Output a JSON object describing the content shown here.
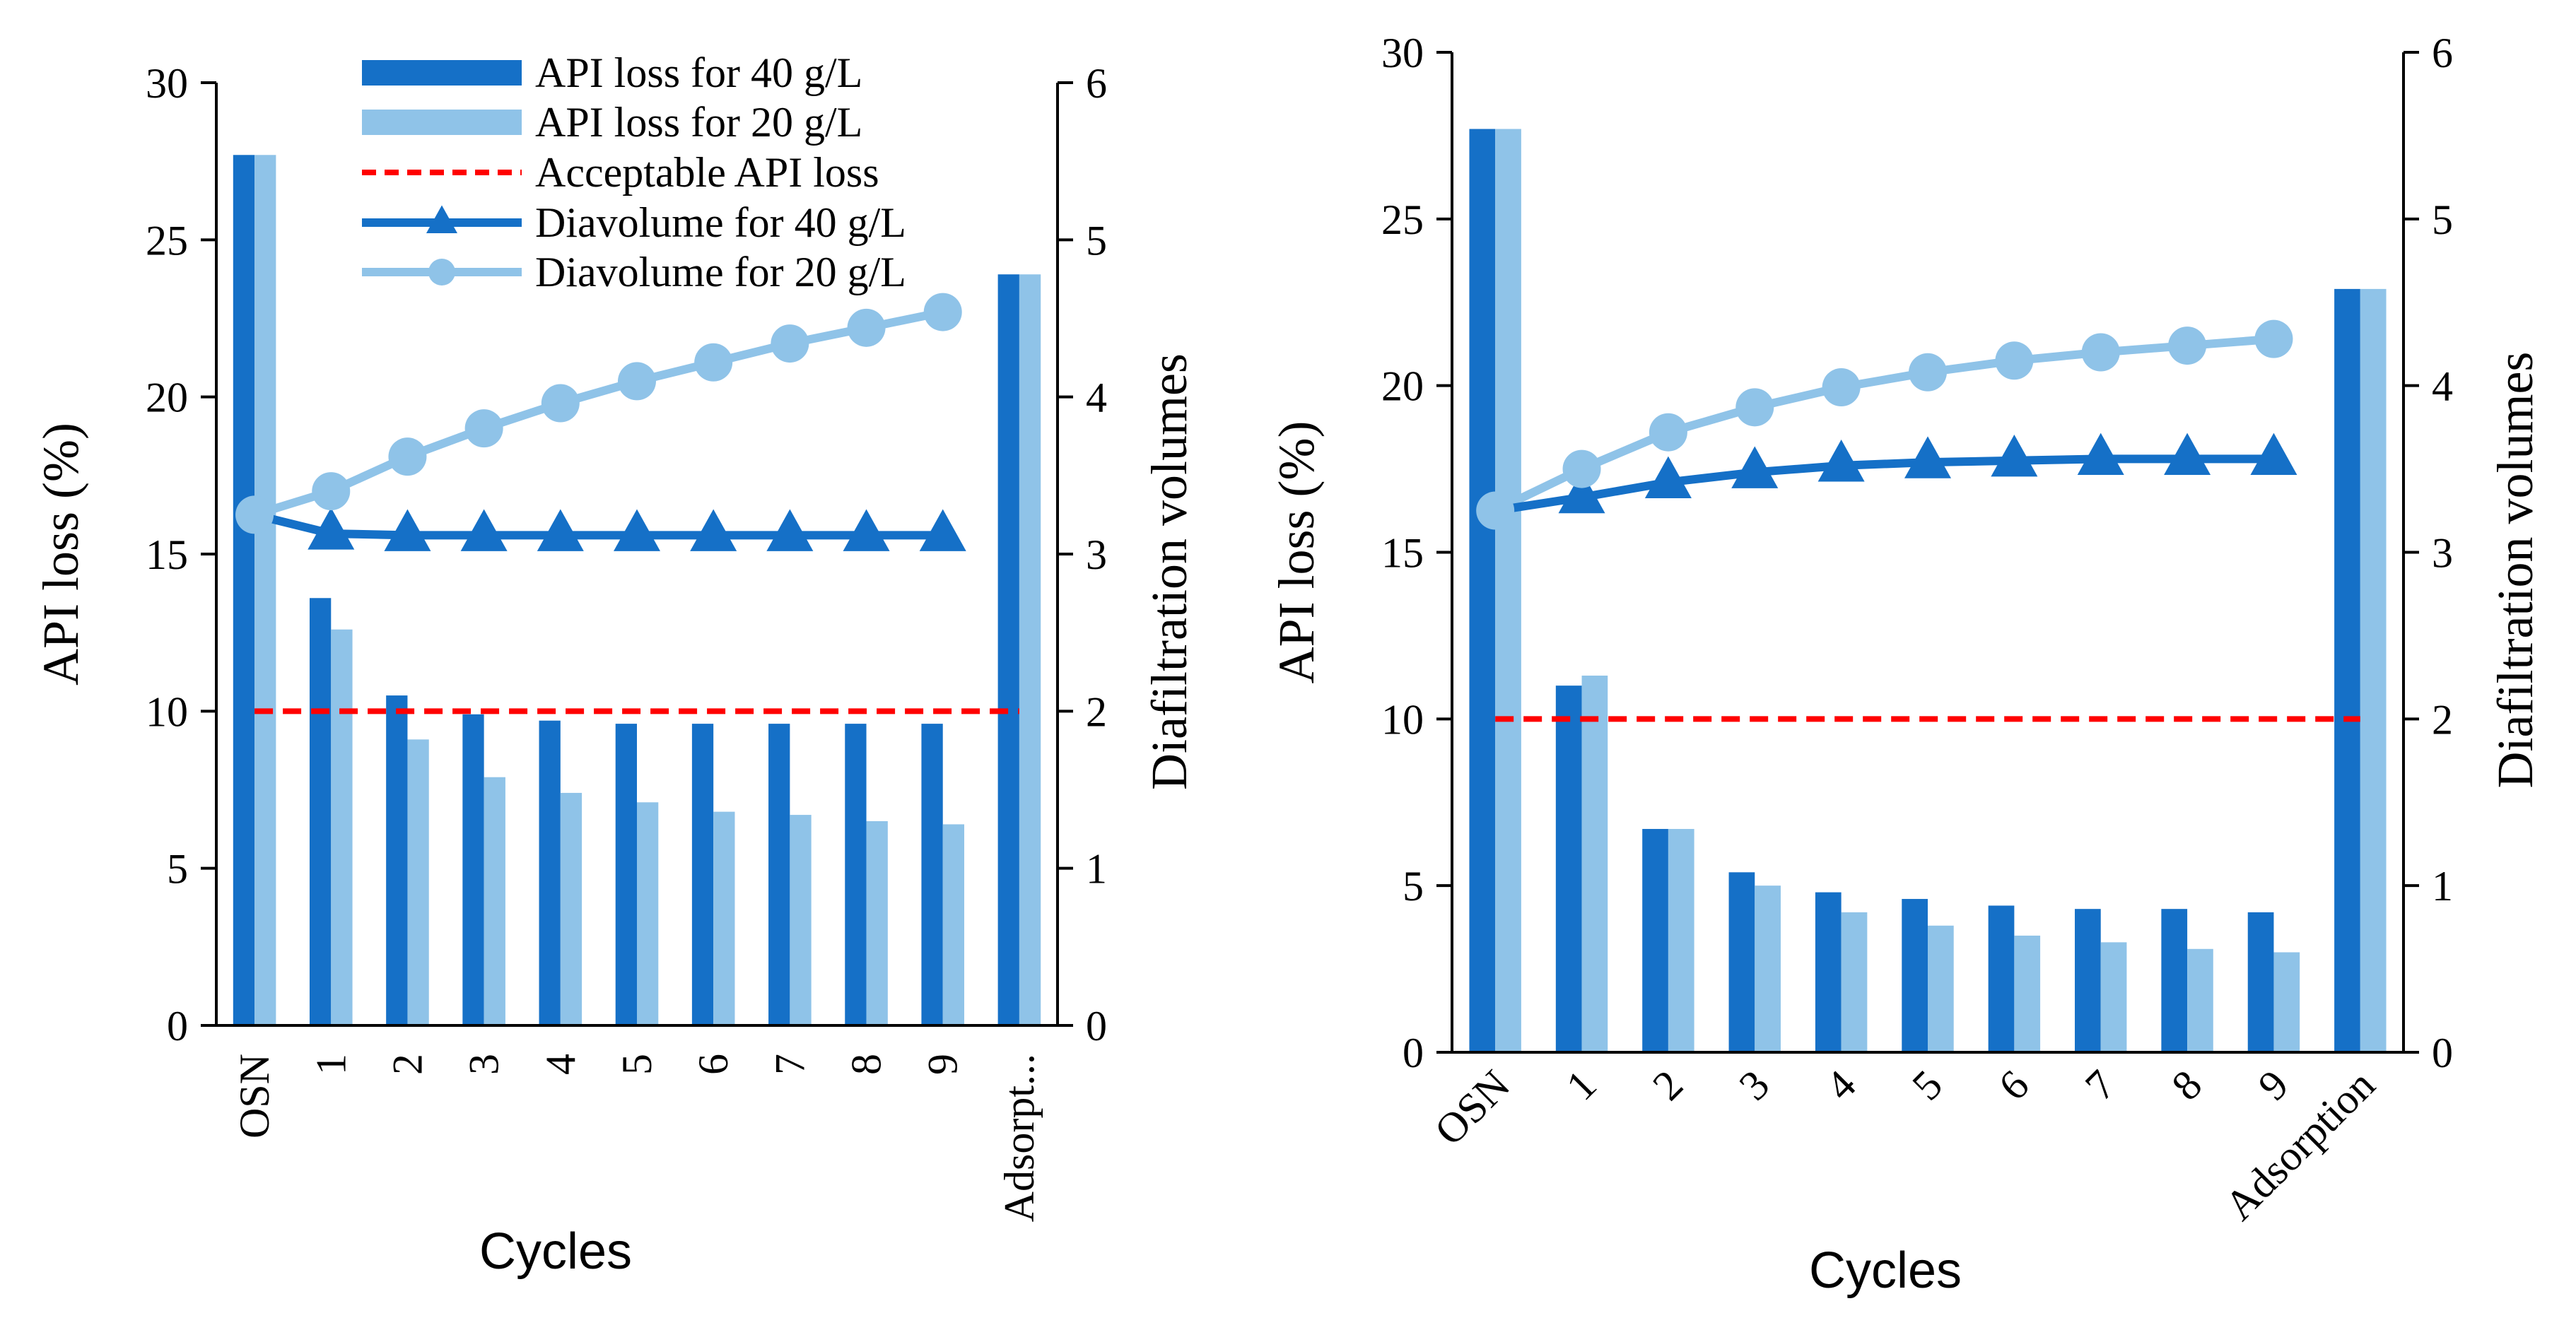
{
  "colors": {
    "dark_blue": "#1570C7",
    "light_blue": "#8FC3E8",
    "red": "#FF0000",
    "axis": "#000000"
  },
  "legend": {
    "items": [
      {
        "label": "API loss for 40 g/L",
        "kind": "bar-dark"
      },
      {
        "label": "API loss for 20 g/L",
        "kind": "bar-light"
      },
      {
        "label": "Acceptable API loss",
        "kind": "dashed-red"
      },
      {
        "label": "Diavolume for 40 g/L",
        "kind": "line-triangle"
      },
      {
        "label": "Diavolume for 20 g/L",
        "kind": "line-circle"
      }
    ]
  },
  "chart_data": [
    {
      "type": "bar",
      "panel": "left",
      "categories": [
        "OSN",
        "1",
        "2",
        "3",
        "4",
        "5",
        "6",
        "7",
        "8",
        "9",
        "Adsorpt..."
      ],
      "series": [
        {
          "name": "API loss for 40 g/L",
          "axis": "left",
          "values": [
            27.7,
            13.6,
            10.5,
            9.9,
            9.7,
            9.6,
            9.6,
            9.6,
            9.6,
            9.6,
            23.9
          ]
        },
        {
          "name": "API loss for 20 g/L",
          "axis": "left",
          "values": [
            27.7,
            12.6,
            9.1,
            7.9,
            7.4,
            7.1,
            6.8,
            6.7,
            6.5,
            6.4,
            23.9
          ]
        },
        {
          "name": "Diavolume for 40 g/L",
          "type": "line",
          "axis": "right",
          "x": [
            "OSN",
            "1",
            "2",
            "3",
            "4",
            "5",
            "6",
            "7",
            "8",
            "9"
          ],
          "values": [
            3.25,
            3.13,
            3.12,
            3.12,
            3.12,
            3.12,
            3.12,
            3.12,
            3.12,
            3.12
          ]
        },
        {
          "name": "Diavolume for 20 g/L",
          "type": "line",
          "axis": "right",
          "x": [
            "OSN",
            "1",
            "2",
            "3",
            "4",
            "5",
            "6",
            "7",
            "8",
            "9"
          ],
          "values": [
            3.25,
            3.4,
            3.62,
            3.8,
            3.96,
            4.1,
            4.22,
            4.34,
            4.44,
            4.54
          ]
        }
      ],
      "reference_line": {
        "name": "Acceptable API loss",
        "value": 10
      },
      "xlabel": "Cycles",
      "ylabel": "API loss (%)",
      "y2label": "Diafiltration volumes",
      "ylim": [
        0,
        30
      ],
      "y2lim": [
        0,
        6
      ],
      "yticks": [
        0,
        5,
        10,
        15,
        20,
        25,
        30
      ],
      "y2ticks": [
        0,
        1,
        2,
        3,
        4,
        5,
        6
      ]
    },
    {
      "type": "bar",
      "panel": "right",
      "categories": [
        "OSN",
        "1",
        "2",
        "3",
        "4",
        "5",
        "6",
        "7",
        "8",
        "9",
        "Adsorption"
      ],
      "series": [
        {
          "name": "API loss for 40 g/L",
          "axis": "left",
          "values": [
            27.7,
            11.0,
            6.7,
            5.4,
            4.8,
            4.6,
            4.4,
            4.3,
            4.3,
            4.2,
            22.9
          ]
        },
        {
          "name": "API loss for 20 g/L",
          "axis": "left",
          "values": [
            27.7,
            11.3,
            6.7,
            5.0,
            4.2,
            3.8,
            3.5,
            3.3,
            3.1,
            3.0,
            22.9
          ]
        },
        {
          "name": "Diavolume for 40 g/L",
          "type": "line",
          "axis": "right",
          "x": [
            "OSN",
            "1",
            "2",
            "3",
            "4",
            "5",
            "6",
            "7",
            "8",
            "9"
          ],
          "values": [
            3.25,
            3.33,
            3.42,
            3.48,
            3.52,
            3.54,
            3.55,
            3.56,
            3.56,
            3.56
          ]
        },
        {
          "name": "Diavolume for 20 g/L",
          "type": "line",
          "axis": "right",
          "x": [
            "OSN",
            "1",
            "2",
            "3",
            "4",
            "5",
            "6",
            "7",
            "8",
            "9"
          ],
          "values": [
            3.25,
            3.5,
            3.72,
            3.87,
            3.99,
            4.08,
            4.15,
            4.2,
            4.24,
            4.28
          ]
        }
      ],
      "reference_line": {
        "name": "Acceptable API loss",
        "value": 10
      },
      "xlabel": "Cycles",
      "ylabel": "API loss (%)",
      "y2label": "Diafiltration volumes",
      "ylim": [
        0,
        30
      ],
      "y2lim": [
        0,
        6
      ],
      "yticks": [
        0,
        5,
        10,
        15,
        20,
        25,
        30
      ],
      "y2ticks": [
        0,
        1,
        2,
        3,
        4,
        5,
        6
      ]
    }
  ]
}
